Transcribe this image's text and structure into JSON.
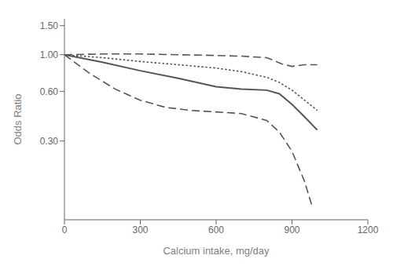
{
  "chart_data": {
    "type": "line",
    "xlabel": "Calcium intake, mg/day",
    "ylabel": "Odds Ratio",
    "log": "y",
    "grid": false,
    "xlim": [
      0,
      1200
    ],
    "xticks": [
      0,
      300,
      600,
      900,
      1200
    ],
    "ylim": [
      0.1,
      1.65
    ],
    "yticks": [
      {
        "value": 0.3,
        "label": "0.30"
      },
      {
        "value": 0.6,
        "label": "0.60"
      },
      {
        "value": 1.0,
        "label": "1.00"
      },
      {
        "value": 1.5,
        "label": "1.50"
      }
    ],
    "series": [
      {
        "color": "#555555",
        "line_style": "dashed",
        "x": [
          0,
          150,
          300,
          450,
          600,
          700,
          800,
          860,
          900,
          950,
          1000
        ],
        "values": [
          1.0,
          1.01,
          1.01,
          1.0,
          0.99,
          0.98,
          0.96,
          0.88,
          0.85,
          0.87,
          0.87
        ]
      },
      {
        "color": "#555555",
        "line_style": "dashed",
        "x": [
          0,
          100,
          200,
          300,
          400,
          500,
          600,
          700,
          800,
          850,
          900,
          950,
          980
        ],
        "values": [
          1.0,
          0.77,
          0.62,
          0.53,
          0.48,
          0.46,
          0.45,
          0.44,
          0.4,
          0.34,
          0.26,
          0.17,
          0.12
        ]
      },
      {
        "color": "#555555",
        "line_style": "dotted",
        "x": [
          0,
          150,
          300,
          450,
          600,
          700,
          800,
          850,
          900,
          950,
          1000
        ],
        "values": [
          1.0,
          0.96,
          0.91,
          0.87,
          0.83,
          0.79,
          0.73,
          0.68,
          0.61,
          0.53,
          0.46
        ]
      },
      {
        "color": "#555555",
        "line_style": "solid",
        "x": [
          0,
          150,
          300,
          450,
          600,
          700,
          800,
          850,
          900,
          950,
          1000
        ],
        "values": [
          1.0,
          0.9,
          0.8,
          0.72,
          0.64,
          0.62,
          0.61,
          0.58,
          0.5,
          0.42,
          0.35
        ]
      }
    ]
  }
}
